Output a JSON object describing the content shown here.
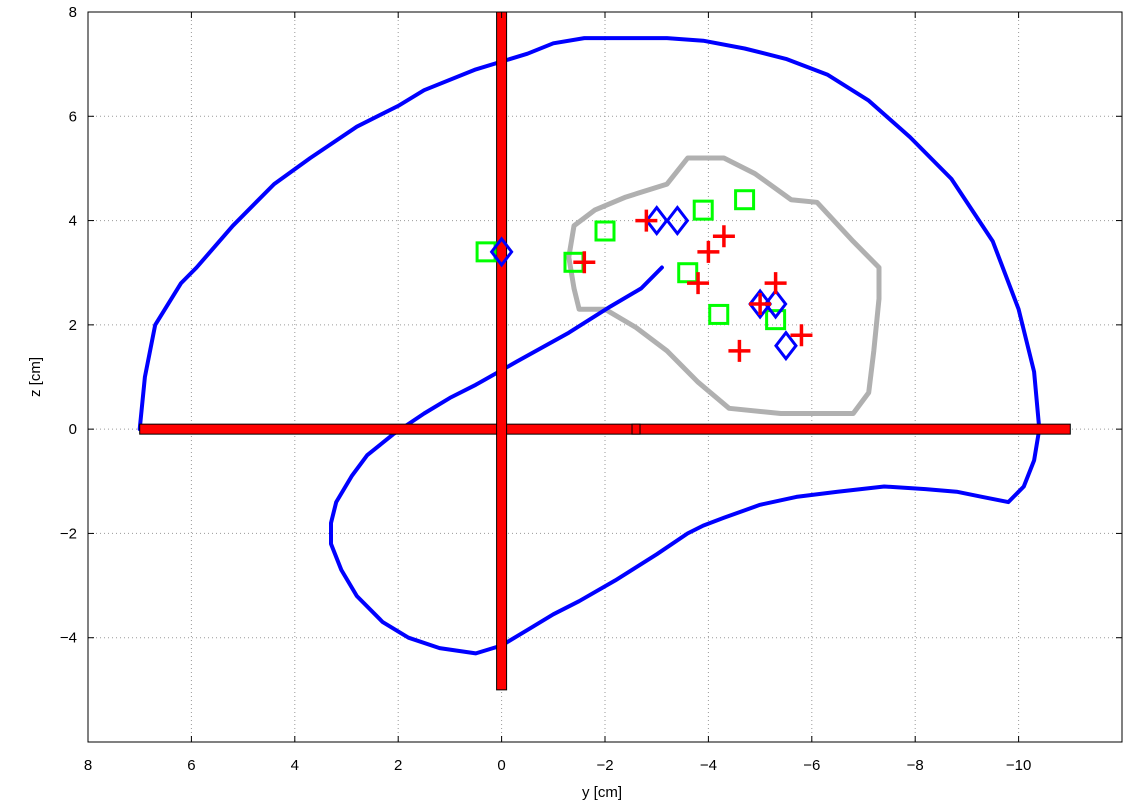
{
  "chart_data": {
    "type": "scatter",
    "title": "",
    "xlabel": "y [cm]",
    "ylabel": "z [cm]",
    "xlim": [
      8,
      -12
    ],
    "ylim": [
      -6,
      8
    ],
    "x_reversed": true,
    "grid": true,
    "xticks": [
      8,
      6,
      4,
      2,
      0,
      -2,
      -4,
      -6,
      -8,
      -10
    ],
    "xtick_labels": [
      "8",
      "6",
      "4",
      "2",
      "0",
      "−2",
      "−4",
      "−6",
      "−8",
      "−10"
    ],
    "yticks": [
      8,
      6,
      4,
      2,
      0,
      -2,
      -4
    ],
    "ytick_labels": [
      "8",
      "6",
      "4",
      "2",
      "0",
      "−2",
      "−4"
    ],
    "colors": {
      "brain_outline": "#0000ff",
      "region_outline": "#b0b0b0",
      "crosshair_fill": "#ff0000",
      "crosshair_stroke": "#000000",
      "squares": "#00ff00",
      "diamonds": "#0000ff",
      "crosses": "#ff0000"
    },
    "brain_outline": [
      [
        7.0,
        0.0
      ],
      [
        6.9,
        1.0
      ],
      [
        6.7,
        2.0
      ],
      [
        6.2,
        2.8
      ],
      [
        5.9,
        3.1
      ],
      [
        5.2,
        3.9
      ],
      [
        4.4,
        4.7
      ],
      [
        3.7,
        5.2
      ],
      [
        2.8,
        5.8
      ],
      [
        2.0,
        6.2
      ],
      [
        1.5,
        6.5
      ],
      [
        0.5,
        6.9
      ],
      [
        -0.5,
        7.2
      ],
      [
        -1.0,
        7.4
      ],
      [
        -1.6,
        7.5
      ],
      [
        -2.5,
        7.5
      ],
      [
        -3.2,
        7.5
      ],
      [
        -3.9,
        7.45
      ],
      [
        -4.7,
        7.3
      ],
      [
        -5.5,
        7.1
      ],
      [
        -6.3,
        6.8
      ],
      [
        -7.1,
        6.3
      ],
      [
        -7.9,
        5.6
      ],
      [
        -8.7,
        4.8
      ],
      [
        -9.5,
        3.6
      ],
      [
        -10.0,
        2.3
      ],
      [
        -10.3,
        1.1
      ],
      [
        -10.4,
        0.0
      ],
      [
        -10.3,
        -0.6
      ],
      [
        -10.1,
        -1.1
      ],
      [
        -9.8,
        -1.4
      ],
      [
        -9.3,
        -1.3
      ],
      [
        -8.8,
        -1.2
      ],
      [
        -8.2,
        -1.15
      ],
      [
        -7.4,
        -1.1
      ],
      [
        -6.5,
        -1.2
      ],
      [
        -5.7,
        -1.3
      ],
      [
        -5.0,
        -1.45
      ],
      [
        -4.3,
        -1.7
      ],
      [
        -3.9,
        -1.85
      ],
      [
        -3.6,
        -2.0
      ],
      [
        -3.0,
        -2.4
      ],
      [
        -2.2,
        -2.9
      ],
      [
        -1.5,
        -3.3
      ],
      [
        -1.0,
        -3.55
      ],
      [
        -0.5,
        -3.85
      ],
      [
        0.0,
        -4.15
      ],
      [
        0.5,
        -4.3
      ],
      [
        1.2,
        -4.2
      ],
      [
        1.8,
        -4.0
      ],
      [
        2.3,
        -3.7
      ],
      [
        2.8,
        -3.2
      ],
      [
        3.1,
        -2.7
      ],
      [
        3.3,
        -2.2
      ],
      [
        3.3,
        -1.8
      ],
      [
        3.2,
        -1.4
      ],
      [
        2.9,
        -0.9
      ],
      [
        2.6,
        -0.5
      ],
      [
        2.1,
        -0.1
      ],
      [
        1.5,
        0.3
      ],
      [
        1.0,
        0.6
      ],
      [
        0.5,
        0.85
      ],
      [
        -0.3,
        1.3
      ],
      [
        -1.3,
        1.85
      ],
      [
        -2.1,
        2.35
      ],
      [
        -2.7,
        2.7
      ],
      [
        -3.1,
        3.1
      ]
    ],
    "region_outline": [
      [
        -1.4,
        3.9
      ],
      [
        -1.8,
        4.2
      ],
      [
        -2.4,
        4.45
      ],
      [
        -3.2,
        4.7
      ],
      [
        -3.6,
        5.2
      ],
      [
        -4.3,
        5.2
      ],
      [
        -4.9,
        4.9
      ],
      [
        -5.6,
        4.4
      ],
      [
        -6.1,
        4.35
      ],
      [
        -6.8,
        3.6
      ],
      [
        -7.3,
        3.1
      ],
      [
        -7.3,
        2.5
      ],
      [
        -7.2,
        1.5
      ],
      [
        -7.1,
        0.7
      ],
      [
        -6.8,
        0.3
      ],
      [
        -6.2,
        0.3
      ],
      [
        -5.4,
        0.3
      ],
      [
        -4.4,
        0.4
      ],
      [
        -3.8,
        0.9
      ],
      [
        -3.2,
        1.5
      ],
      [
        -2.6,
        1.95
      ],
      [
        -2.0,
        2.3
      ],
      [
        -1.5,
        2.3
      ],
      [
        -1.4,
        2.7
      ],
      [
        -1.3,
        3.3
      ]
    ],
    "crosshair_vertical": {
      "y": 0.0,
      "z_from": -5.0,
      "z_to": 8.0
    },
    "crosshair_horizontal": {
      "z": 0.0,
      "y_from": 7.0,
      "y_to": -11.0,
      "inner_box_y": -2.6
    },
    "squares": [
      [
        0.3,
        3.4
      ],
      [
        -1.4,
        3.2
      ],
      [
        -2.0,
        3.8
      ],
      [
        -3.6,
        3.0
      ],
      [
        -3.9,
        4.2
      ],
      [
        -4.2,
        2.2
      ],
      [
        -4.7,
        4.4
      ],
      [
        -5.3,
        2.1
      ]
    ],
    "diamonds": [
      [
        0.0,
        3.4
      ],
      [
        -3.0,
        4.0
      ],
      [
        -3.4,
        4.0
      ],
      [
        -5.0,
        2.4
      ],
      [
        -5.3,
        2.4
      ],
      [
        -5.5,
        1.6
      ]
    ],
    "crosses": [
      [
        -1.6,
        3.2
      ],
      [
        -2.8,
        4.0
      ],
      [
        -3.8,
        2.8
      ],
      [
        -4.0,
        3.4
      ],
      [
        -4.3,
        3.7
      ],
      [
        -4.6,
        1.5
      ],
      [
        -5.0,
        2.4
      ],
      [
        -5.3,
        2.8
      ],
      [
        -5.8,
        1.8
      ]
    ]
  }
}
